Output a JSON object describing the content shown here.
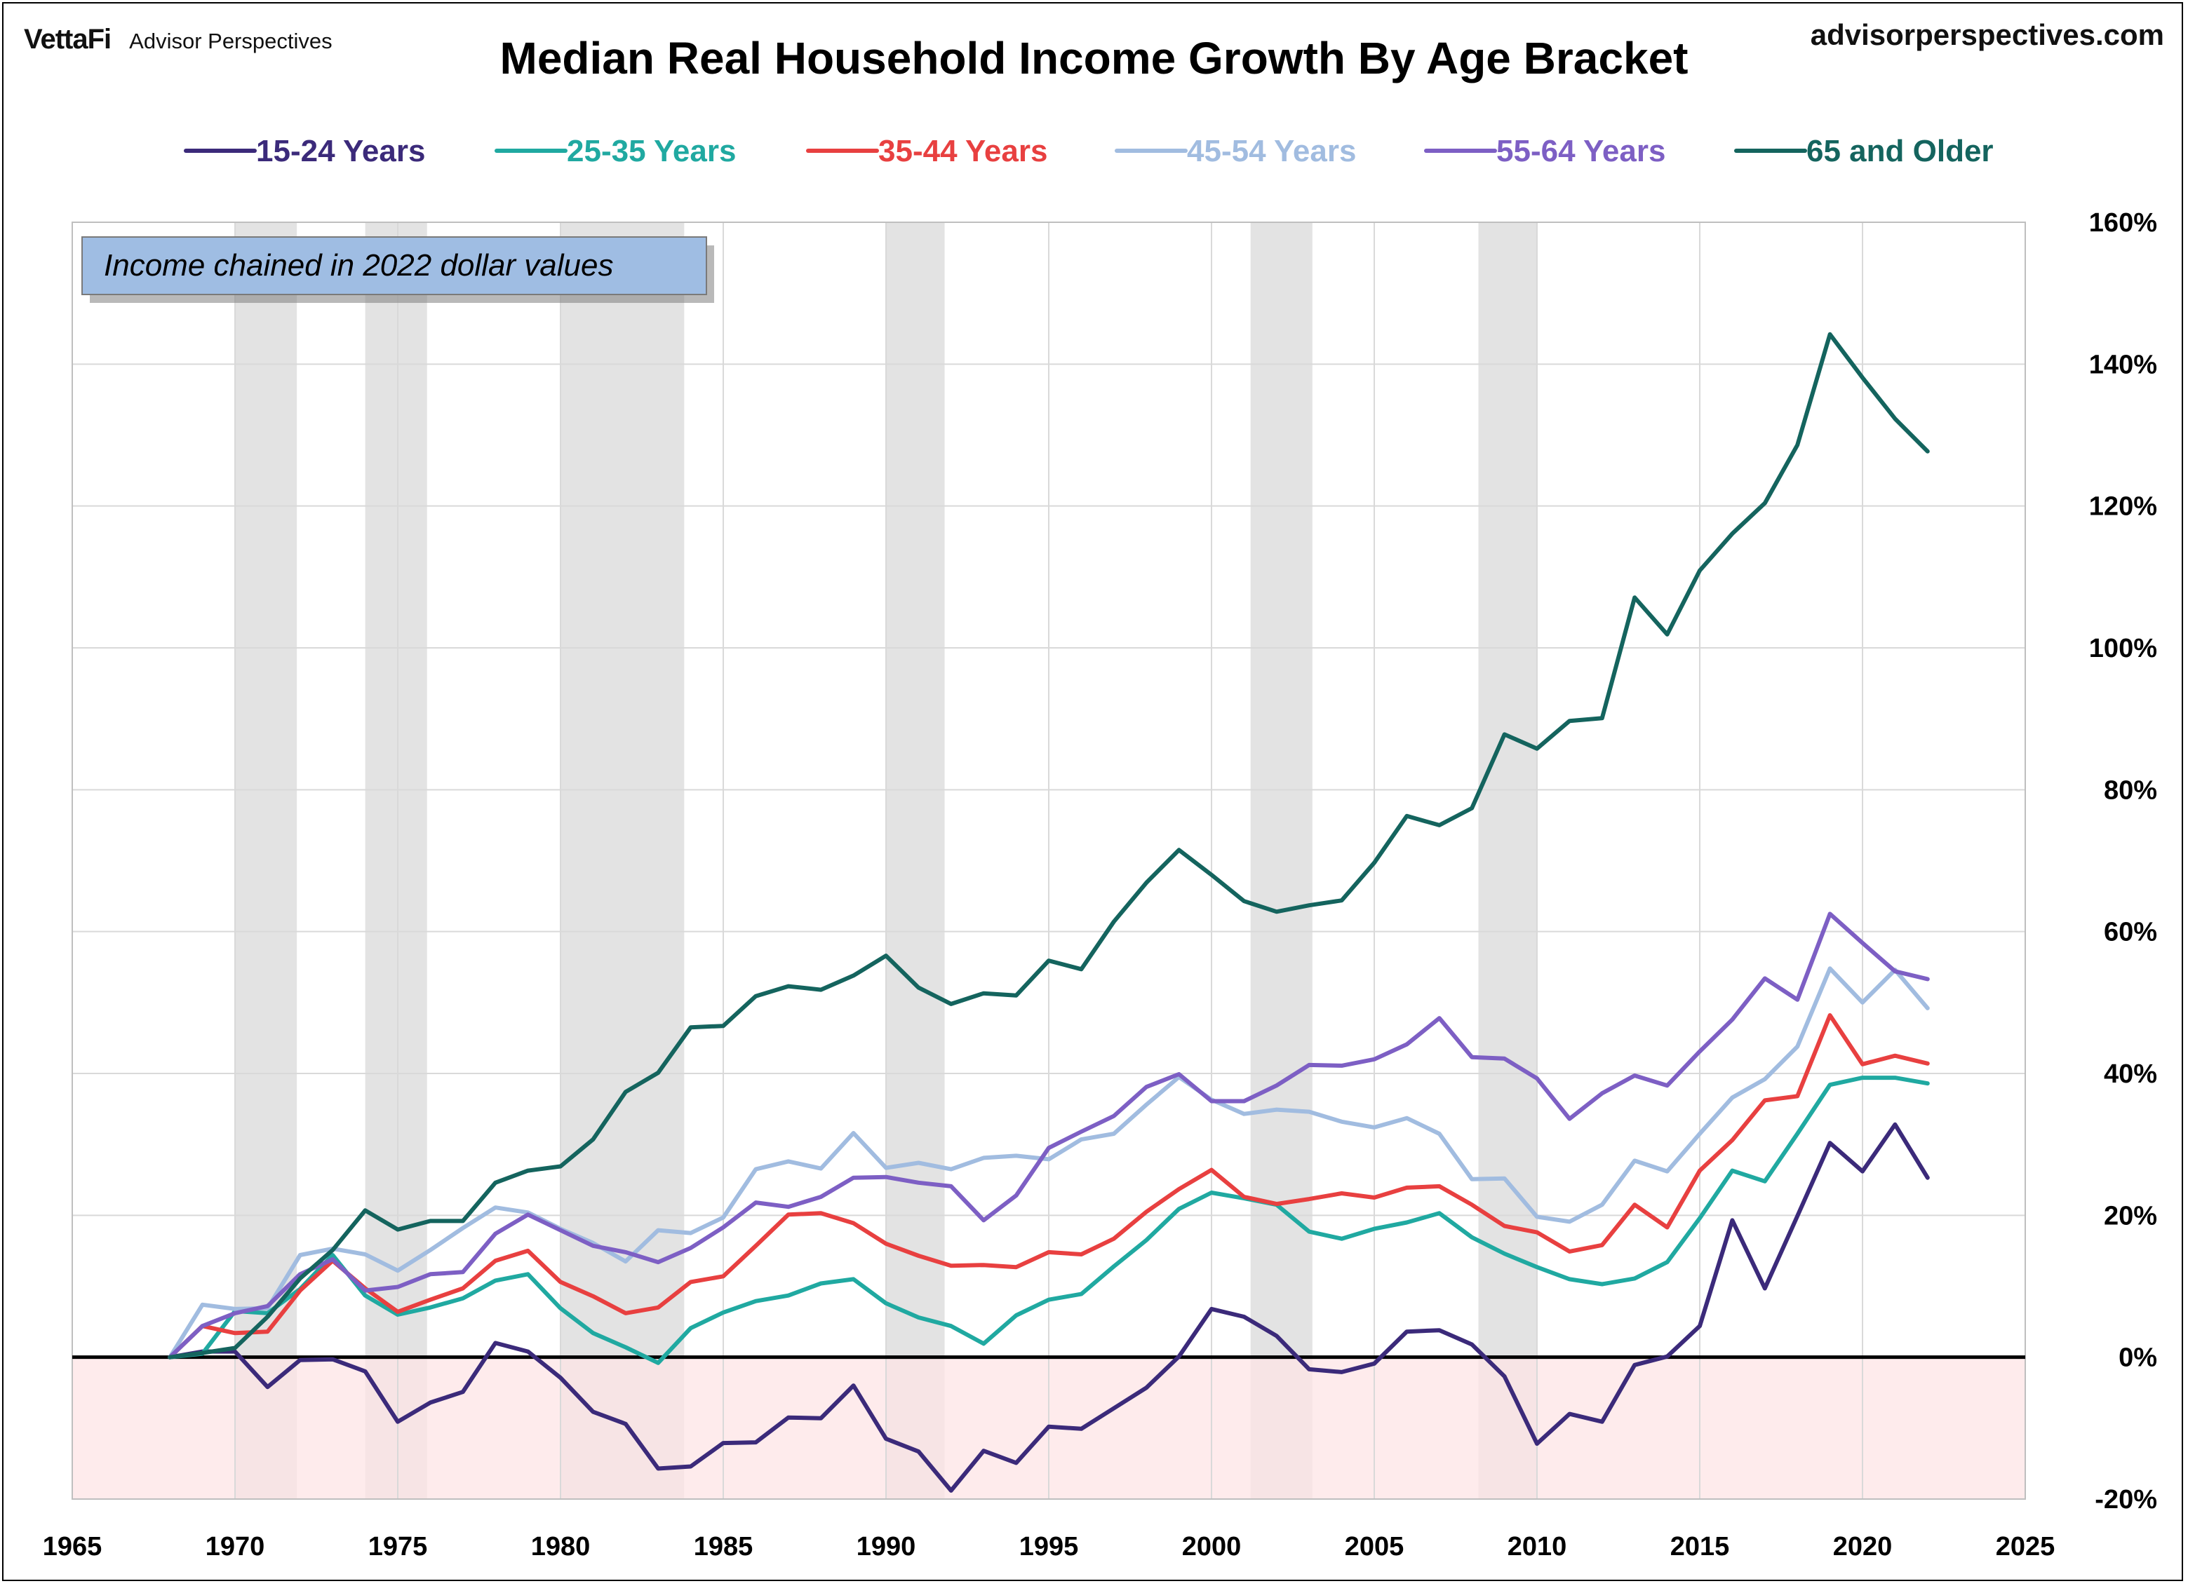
{
  "header": {
    "brand_left": "VettaFi",
    "brand_sub": "Advisor Perspectives",
    "brand_right": "advisorperspectives.com"
  },
  "chart_data": {
    "type": "line",
    "title": "Median Real Household Income Growth By Age Bracket",
    "annotation": "Income chained in 2022 dollar values",
    "xlim": [
      1965,
      2025
    ],
    "ylim": [
      -20,
      160
    ],
    "x_ticks": [
      "1965",
      "1970",
      "1975",
      "1980",
      "1985",
      "1990",
      "1995",
      "2000",
      "2005",
      "2010",
      "2015",
      "2020",
      "2025"
    ],
    "y_ticks": [
      "160%",
      "140%",
      "120%",
      "100%",
      "80%",
      "60%",
      "40%",
      "20%",
      "0%",
      "-20%"
    ],
    "grid": true,
    "y_axis_side": "right",
    "legend_position": "top",
    "recessions": [
      [
        1970.0,
        1971.9
      ],
      [
        1974.0,
        1975.9
      ],
      [
        1980.0,
        1983.8
      ],
      [
        1990.0,
        1991.8
      ],
      [
        2001.2,
        2003.1
      ],
      [
        2008.2,
        2010.0
      ]
    ],
    "x": [
      1968,
      1969,
      1970,
      1971,
      1972,
      1973,
      1974,
      1975,
      1976,
      1977,
      1978,
      1979,
      1980,
      1981,
      1982,
      1983,
      1984,
      1985,
      1986,
      1987,
      1988,
      1989,
      1990,
      1991,
      1992,
      1993,
      1994,
      1995,
      1996,
      1997,
      1998,
      1999,
      2000,
      2001,
      2002,
      2003,
      2004,
      2005,
      2006,
      2007,
      2008,
      2009,
      2010,
      2011,
      2012,
      2013,
      2014,
      2015,
      2016,
      2017,
      2018,
      2019,
      2020,
      2021,
      2022
    ],
    "series": [
      {
        "name": "15-24 Years",
        "color": "#3b2a7a",
        "values": [
          0,
          0.8,
          0.8,
          -4.2,
          -0.4,
          -0.3,
          -2,
          -9.1,
          -6.4,
          -4.9,
          2,
          0.8,
          -2.9,
          -7.7,
          -9.4,
          -15.7,
          -15.4,
          -12.1,
          -12,
          -8.5,
          -8.6,
          -4,
          -11.5,
          -13.3,
          -18.8,
          -13.2,
          -14.9,
          -9.8,
          -10.1,
          -7.2,
          -4.3,
          0.1,
          6.8,
          5.7,
          3,
          -1.7,
          -2.1,
          -0.9,
          3.6,
          3.8,
          1.8,
          -2.7,
          -12.2,
          -8,
          -9.1,
          -1.1,
          0.1,
          4.4,
          19.3,
          9.7,
          19.9,
          30.2,
          26.2,
          32.8,
          25.3
        ]
      },
      {
        "name": "25-35 Years",
        "color": "#20a9a1",
        "values": [
          0,
          0.5,
          6.5,
          6.2,
          9.6,
          14.4,
          8.7,
          6,
          7,
          8.3,
          10.8,
          11.7,
          6.9,
          3.4,
          1.4,
          -0.8,
          4.1,
          6.3,
          7.9,
          8.7,
          10.4,
          11,
          7.6,
          5.6,
          4.4,
          1.9,
          5.9,
          8.1,
          8.9,
          12.8,
          16.5,
          20.9,
          23.2,
          22.4,
          21.5,
          17.7,
          16.7,
          18.1,
          19,
          20.3,
          16.9,
          14.6,
          12.7,
          11,
          10.3,
          11.1,
          13.4,
          19.6,
          26.3,
          24.8,
          31.5,
          38.4,
          39.4,
          39.4,
          38.6
        ]
      },
      {
        "name": "35-44 Years",
        "color": "#e84040",
        "values": [
          0,
          4.4,
          3.4,
          3.6,
          9.4,
          13.6,
          9.7,
          6.4,
          8.1,
          9.7,
          13.6,
          15,
          10.6,
          8.6,
          6.2,
          7,
          10.6,
          11.4,
          15.7,
          20.1,
          20.3,
          18.9,
          16,
          14.3,
          12.9,
          13,
          12.7,
          14.8,
          14.5,
          16.7,
          20.5,
          23.7,
          26.4,
          22.6,
          21.6,
          22.3,
          23.1,
          22.5,
          23.9,
          24.1,
          21.5,
          18.5,
          17.6,
          14.9,
          15.8,
          21.5,
          18.3,
          26.3,
          30.6,
          36.2,
          36.8,
          48.2,
          41.3,
          42.5,
          41.4
        ]
      },
      {
        "name": "45-54 Years",
        "color": "#a1bce0",
        "values": [
          0,
          7.4,
          6.8,
          6.9,
          14.4,
          15.3,
          14.5,
          12.2,
          15.1,
          18.2,
          21.1,
          20.4,
          18.1,
          16.1,
          13.5,
          17.9,
          17.5,
          19.7,
          26.5,
          27.6,
          26.6,
          31.6,
          26.7,
          27.4,
          26.5,
          28.1,
          28.4,
          27.9,
          30.7,
          31.5,
          35.6,
          39.5,
          36.3,
          34.3,
          34.9,
          34.6,
          33.2,
          32.4,
          33.7,
          31.5,
          25.1,
          25.2,
          19.8,
          19.1,
          21.5,
          27.7,
          26.2,
          31.5,
          36.6,
          39.2,
          43.8,
          54.8,
          50,
          54.6,
          49.2
        ]
      },
      {
        "name": "55-64 Years",
        "color": "#7d5fc4",
        "values": [
          0,
          4.4,
          6.2,
          7.2,
          11.7,
          13.8,
          9.4,
          9.9,
          11.7,
          12,
          17.4,
          20.1,
          17.9,
          15.7,
          14.8,
          13.4,
          15.4,
          18.3,
          21.8,
          21.2,
          22.6,
          25.3,
          25.4,
          24.6,
          24.1,
          19.3,
          22.8,
          29.5,
          31.8,
          34,
          38.1,
          39.9,
          36.1,
          36.1,
          38.3,
          41.2,
          41.1,
          42,
          44.1,
          47.8,
          42.3,
          42.1,
          39.3,
          33.6,
          37.2,
          39.7,
          38.3,
          43.1,
          47.6,
          53.4,
          50.4,
          62.5,
          58.4,
          54.4,
          53.3
        ]
      },
      {
        "name": "65 and Older",
        "color": "#14645e",
        "values": [
          0,
          0.6,
          1.3,
          5.7,
          11.1,
          15.1,
          20.7,
          18,
          19.2,
          19.2,
          24.6,
          26.3,
          26.9,
          30.7,
          37.4,
          40.1,
          46.5,
          46.7,
          50.9,
          52.3,
          51.8,
          53.8,
          56.6,
          52.1,
          49.8,
          51.3,
          51,
          55.9,
          54.7,
          61.4,
          66.9,
          71.5,
          68,
          64.3,
          62.8,
          63.7,
          64.4,
          69.7,
          76.3,
          75,
          77.4,
          87.8,
          85.8,
          89.7,
          90.1,
          107.1,
          101.9,
          110.9,
          116.1,
          120.4,
          128.6,
          144.2,
          138.1,
          132.3,
          127.7
        ]
      }
    ]
  }
}
